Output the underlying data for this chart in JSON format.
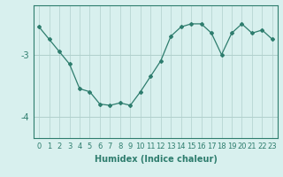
{
  "x": [
    0,
    1,
    2,
    3,
    4,
    5,
    6,
    7,
    8,
    9,
    10,
    11,
    12,
    13,
    14,
    15,
    16,
    17,
    18,
    19,
    20,
    21,
    22,
    23
  ],
  "y": [
    -2.55,
    -2.75,
    -2.95,
    -3.15,
    -3.55,
    -3.6,
    -3.8,
    -3.82,
    -3.78,
    -3.82,
    -3.6,
    -3.35,
    -3.1,
    -2.7,
    -2.55,
    -2.5,
    -2.5,
    -2.65,
    -3.0,
    -2.65,
    -2.5,
    -2.65,
    -2.6,
    -2.75
  ],
  "line_color": "#2e7d6e",
  "marker": "D",
  "marker_size": 2,
  "bg_color": "#d8f0ee",
  "grid_color": "#b0d0cc",
  "xlabel": "Humidex (Indice chaleur)",
  "yticks": [
    -4,
    -3
  ],
  "ylim": [
    -4.35,
    -2.2
  ],
  "xlim": [
    -0.5,
    23.5
  ],
  "xlabel_fontsize": 7,
  "tick_fontsize": 7,
  "text_color": "#2e7d6e"
}
